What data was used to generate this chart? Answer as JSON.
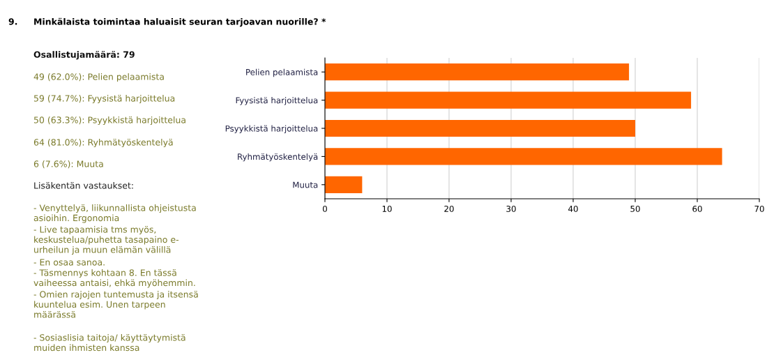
{
  "chart_data": {
    "type": "bar",
    "orientation": "horizontal",
    "title": "Minkälaista toimintaa haluaisit seuran tarjoavan nuorille? *",
    "categories": [
      "Pelien pelaamista",
      "Fyysistä harjoittelua",
      "Psyykkistä harjoittelua",
      "Ryhmätyöskentelyä",
      "Muuta"
    ],
    "values": [
      49,
      59,
      50,
      64,
      6
    ],
    "color": "#ff6600",
    "xlim": [
      0,
      70
    ],
    "xticks": [
      0,
      10,
      20,
      30,
      40,
      50,
      60,
      70
    ],
    "grid": "x",
    "annotations": [
      "9.",
      "Osallistujamäärä: 79",
      "49 (62.0%): Pelien pelaamista",
      "59 (74.7%): Fyysistä harjoittelua",
      "50 (63.3%): Psyykkistä harjoittelua",
      "64 (81.0%): Ryhmätyöskentelyä",
      "6 (7.6%): Muuta",
      "Lisäkentän vastaukset:",
      "- Venyttelyä, liikunnallista ohjeistusta\nasioihin. Ergonomia",
      "- Live tapaamisia tms myös,\nkeskustelua/puhetta tasapaino e-\nurheilun ja muun elämän välillä",
      "- En osaa sanoa.",
      "- Täsmennys kohtaan 8. En tässä\nvaiheessa antaisi, ehkä myöhemmin.",
      "- Omien rajojen tuntemusta ja itsensä\nkuuntelua esim. Unen tarpeen\nmäärässä",
      "- Sosiaslisia taitoja/ käyttäytymistä\nmuiden ihmisten kanssa"
    ]
  }
}
